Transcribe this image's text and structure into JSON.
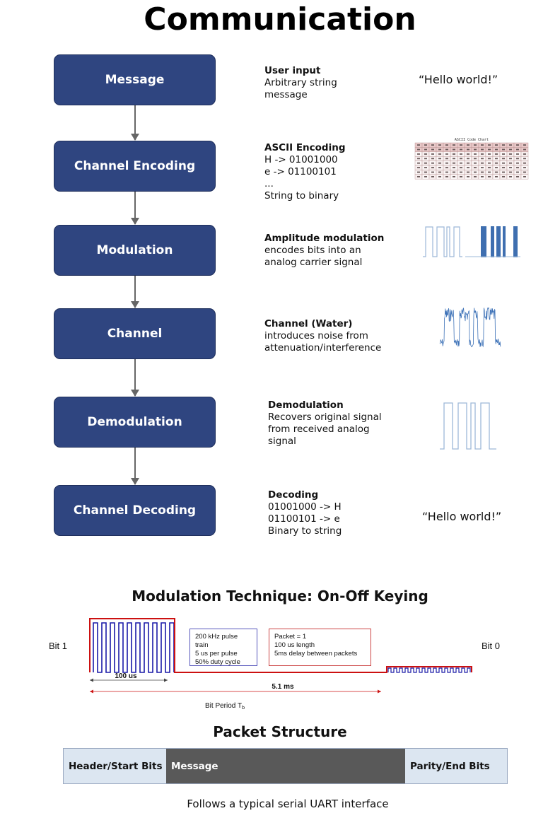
{
  "title": "Communication",
  "stages": [
    {
      "label": "Message",
      "desc_title": "User input",
      "desc_lines": [
        "Arbitrary string",
        "message"
      ],
      "quote": "“Hello world!”"
    },
    {
      "label": "Channel Encoding",
      "desc_title": "ASCII Encoding",
      "desc_lines": [
        "H -> 01001000",
        "e -> 01100101",
        "...",
        "String to binary"
      ],
      "image": "ascii-code-chart",
      "image_title": "ASCII Code Chart"
    },
    {
      "label": "Modulation",
      "desc_title": "Amplitude modulation",
      "desc_lines": [
        "encodes bits into an",
        "analog carrier signal"
      ],
      "image": "square-wave-and-modulated-signal"
    },
    {
      "label": "Channel",
      "desc_title": "Channel (Water)",
      "desc_lines": [
        "introduces noise from",
        "attenuation/interference"
      ],
      "image": "noisy-signal"
    },
    {
      "label": "Demodulation",
      "desc_title": "Demodulation",
      "desc_lines": [
        "Recovers original signal",
        "from received analog",
        "signal"
      ],
      "image": "recovered-square-wave"
    },
    {
      "label": "Channel Decoding",
      "desc_title": "Decoding",
      "desc_lines": [
        "01001000 -> H",
        "01100101 -> e",
        "Binary to string"
      ],
      "quote": "“Hello world!”"
    }
  ],
  "modulation": {
    "title": "Modulation Technique: On-Off Keying",
    "bit1_label": "Bit 1",
    "bit0_label": "Bit 0",
    "pulse_box": [
      "200 kHz pulse train",
      "5 us per pulse",
      "50% duty cycle"
    ],
    "packet_box": [
      "Packet = 1",
      "100 us length",
      "5ms delay between packets"
    ],
    "dim_100us": "100 us",
    "dim_5_1ms": "5.1 ms",
    "bit_period": "Bit Period T",
    "bit_period_sub": "b",
    "colors": {
      "pulse": "#1a1aa8",
      "envelope": "#cc1111",
      "pulse_box_border": "#5555bb",
      "packet_box_border": "#cc4444"
    }
  },
  "packet": {
    "title": "Packet Structure",
    "segments": [
      "Header/Start Bits",
      "Message",
      "Parity/End Bits"
    ],
    "note": "Follows a typical serial UART interface"
  },
  "colors": {
    "stage_fill": "#2f4580",
    "signal": "#4a7ab8"
  }
}
